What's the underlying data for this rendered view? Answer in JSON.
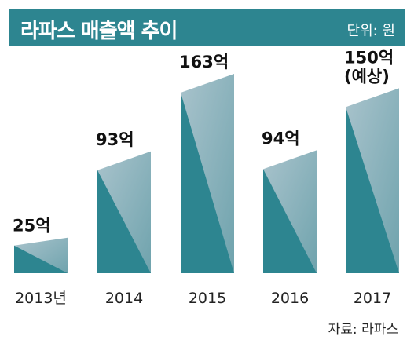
{
  "header": {
    "title": "라파스 매출액 추이",
    "unit": "단위: 원"
  },
  "source": "자료: 라파스",
  "colors": {
    "header_bg": "#2d8590",
    "bar_dark": "#2d8590",
    "bar_light": "#a9c3cc"
  },
  "chart_data": {
    "type": "bar",
    "categories": [
      "2013년",
      "2014",
      "2015",
      "2016",
      "2017"
    ],
    "values": [
      25,
      93,
      163,
      94,
      150
    ],
    "data_labels": [
      "25억",
      "93억",
      "163억",
      "94억",
      "150억\n(예상)"
    ],
    "ylim": [
      0,
      175
    ]
  }
}
